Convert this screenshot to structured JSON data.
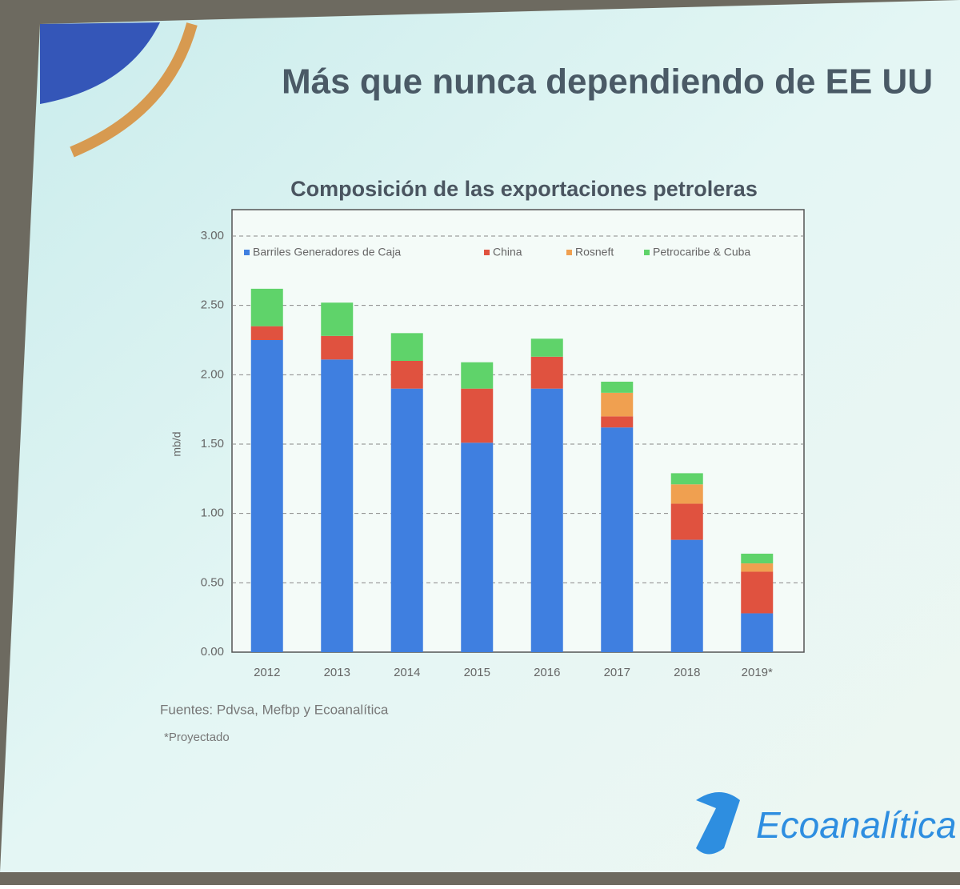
{
  "title": "Más que nunca dependiendo de EE UU",
  "chart_data": {
    "type": "stacked_bar",
    "title": "Composición de las exportaciones petroleras",
    "y_label": "mb/d",
    "categories": [
      "2012",
      "2013",
      "2014",
      "2015",
      "2016",
      "2017",
      "2018",
      "2019*"
    ],
    "series": [
      {
        "name": "Barriles Generadores de Caja",
        "color": "#3f7fe0",
        "values": [
          2.25,
          2.11,
          1.9,
          1.51,
          1.9,
          1.62,
          0.81,
          0.28
        ]
      },
      {
        "name": "China",
        "color": "#e0523f",
        "values": [
          0.1,
          0.17,
          0.2,
          0.39,
          0.23,
          0.08,
          0.26,
          0.3
        ]
      },
      {
        "name": "Rosneft",
        "color": "#f0a050",
        "values": [
          0,
          0,
          0,
          0,
          0,
          0.17,
          0.14,
          0.06
        ]
      },
      {
        "name": "Petrocaribe & Cuba",
        "color": "#5fd36a",
        "values": [
          0.27,
          0.24,
          0.2,
          0.19,
          0.13,
          0.08,
          0.08,
          0.07
        ]
      }
    ],
    "ylim": [
      0,
      3
    ],
    "yticks": [
      {
        "value": 0,
        "label": "0.00"
      },
      {
        "value": 0.5,
        "label": "0.50"
      },
      {
        "value": 1,
        "label": "1.00"
      },
      {
        "value": 1.5,
        "label": "1.50"
      },
      {
        "value": 2,
        "label": "2.00"
      },
      {
        "value": 2.5,
        "label": "2.50"
      },
      {
        "value": 3,
        "label": "3.00"
      }
    ],
    "grid": true,
    "legend": "top"
  },
  "notes": [
    "Fuentes: Pdvsa, Mefbp y Ecoanalítica",
    "*Proyectado"
  ],
  "logo": "Ecoanalítica"
}
